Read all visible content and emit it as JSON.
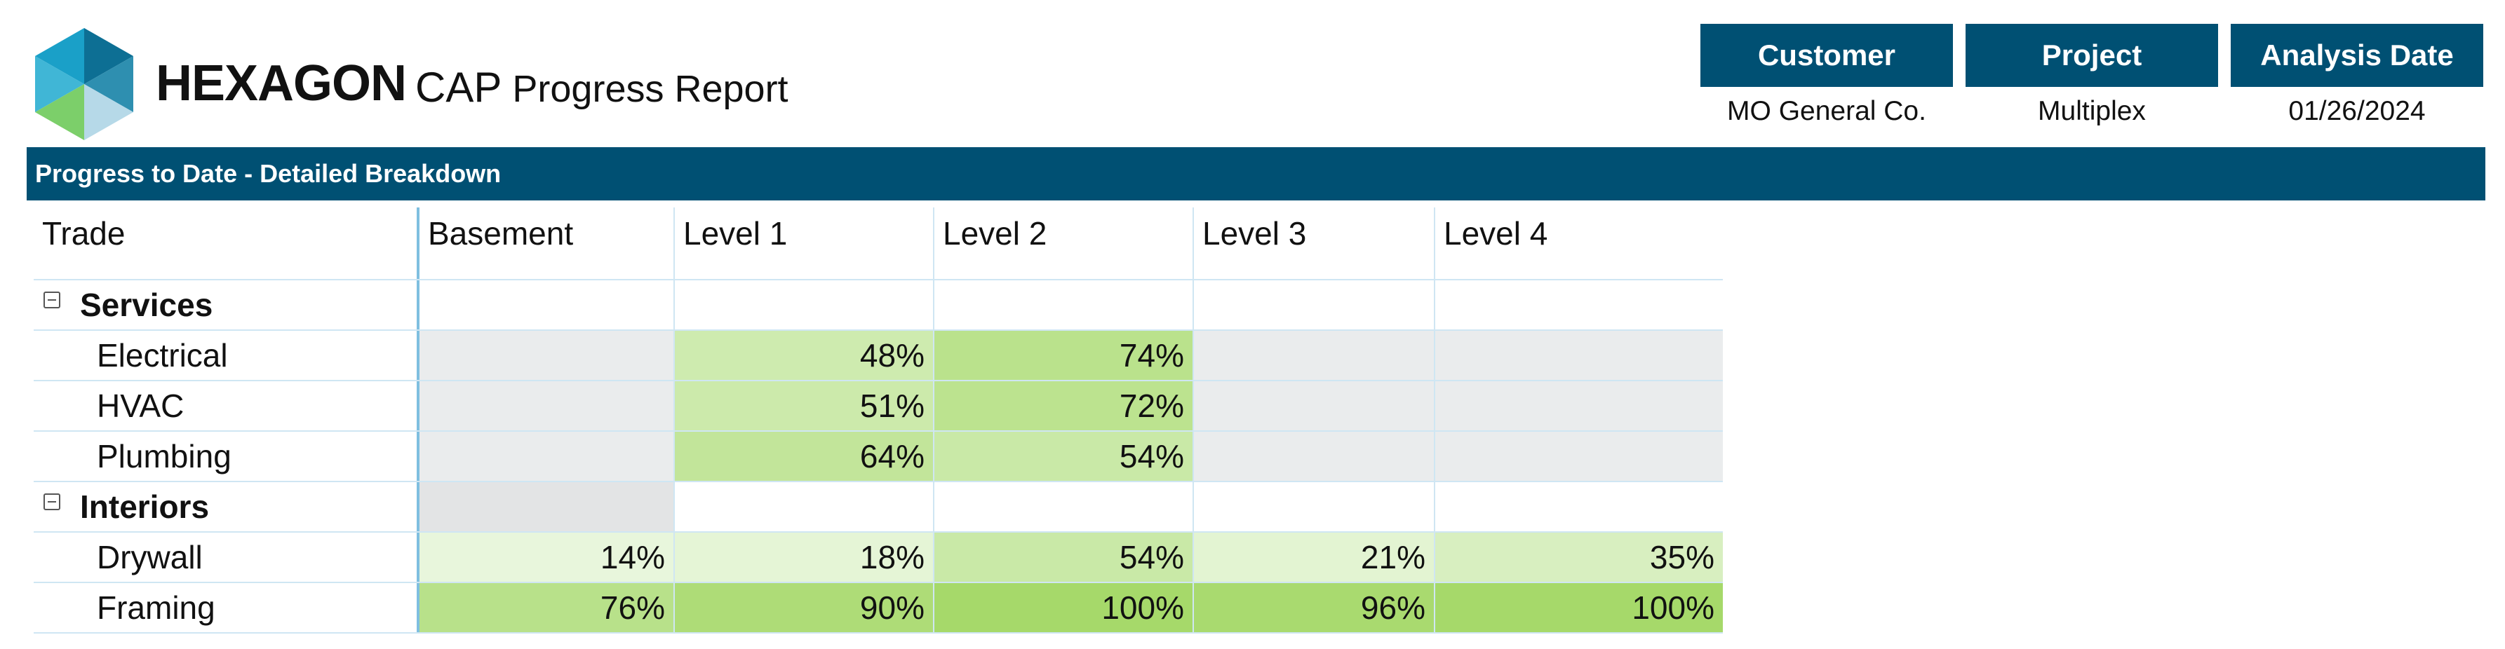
{
  "header": {
    "brand": "HEXAGON",
    "title_prefix": "CAP",
    "title_rest": "Progress Report"
  },
  "info": [
    {
      "label": "Customer",
      "value": "MO General Co."
    },
    {
      "label": "Project",
      "value": "Multiplex"
    },
    {
      "label": "Analysis Date",
      "value": "01/26/2024"
    }
  ],
  "section_title": "Progress to Date - Detailed Breakdown",
  "table": {
    "columns": [
      "Trade",
      "Basement",
      "Level 1",
      "Level 2",
      "Level 3",
      "Level 4"
    ],
    "groups": [
      {
        "name": "Services",
        "rows": [
          {
            "trade": "Electrical",
            "values": [
              "",
              "48%",
              "74%",
              "",
              ""
            ]
          },
          {
            "trade": "HVAC",
            "values": [
              "",
              "51%",
              "72%",
              "",
              ""
            ]
          },
          {
            "trade": "Plumbing",
            "values": [
              "",
              "64%",
              "54%",
              "",
              ""
            ]
          }
        ]
      },
      {
        "name": "Interiors",
        "rows": [
          {
            "trade": "Drywall",
            "values": [
              "14%",
              "18%",
              "54%",
              "21%",
              "35%"
            ]
          },
          {
            "trade": "Framing",
            "values": [
              "76%",
              "90%",
              "100%",
              "96%",
              "100%"
            ]
          }
        ]
      }
    ]
  },
  "colors": {
    "header_bg": "#005073",
    "empty_cell": "#eaeced",
    "heat_low": "#f3fbee",
    "heat_high": "#a6d96a"
  },
  "icons": {
    "group_toggle": "collapse-minus-icon",
    "logo": "hexagon-logo-icon"
  }
}
